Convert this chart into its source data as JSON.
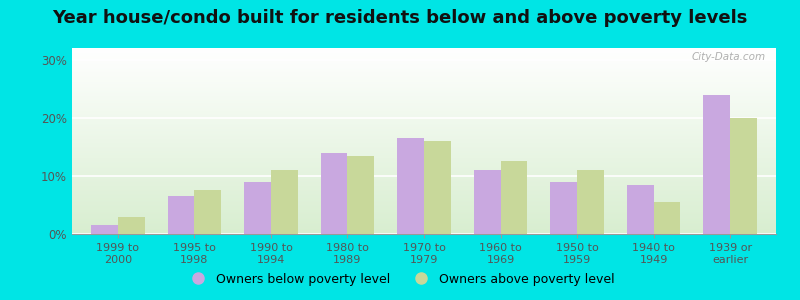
{
  "title": "Year house/condo built for residents below and above poverty levels",
  "categories": [
    "1999 to\n2000",
    "1995 to\n1998",
    "1990 to\n1994",
    "1980 to\n1989",
    "1970 to\n1979",
    "1960 to\n1969",
    "1950 to\n1959",
    "1940 to\n1949",
    "1939 or\nearlier"
  ],
  "below_poverty": [
    1.5,
    6.5,
    9.0,
    14.0,
    16.5,
    11.0,
    9.0,
    8.5,
    24.0
  ],
  "above_poverty": [
    3.0,
    7.5,
    11.0,
    13.5,
    16.0,
    12.5,
    11.0,
    5.5,
    20.0
  ],
  "below_color": "#c9a8e0",
  "above_color": "#c8d89a",
  "background_color": "#00e5e5",
  "yticks": [
    0,
    10,
    20,
    30
  ],
  "ylim": [
    0,
    32
  ],
  "legend_below": "Owners below poverty level",
  "legend_above": "Owners above poverty level",
  "title_fontsize": 13,
  "bar_width": 0.35
}
